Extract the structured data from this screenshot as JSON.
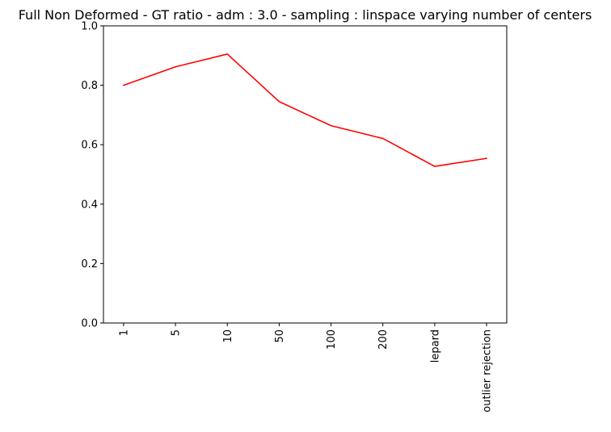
{
  "chart_data": {
    "type": "line",
    "title": "Full Non Deformed - GT ratio - adm : 3.0 - sampling : linspace varying number of centers",
    "xlabel": "",
    "ylabel": "",
    "categories": [
      "1",
      "5",
      "10",
      "50",
      "100",
      "200",
      "lepard",
      "outlier rejection"
    ],
    "series": [
      {
        "values": [
          0.8,
          0.862,
          0.905,
          0.745,
          0.664,
          0.621,
          0.527,
          0.554
        ],
        "color": "#ff0000"
      }
    ],
    "ylim": [
      0.0,
      1.0
    ],
    "yticks": [
      0.0,
      0.2,
      0.4,
      0.6,
      0.8,
      1.0
    ],
    "ytick_labels": [
      "0.0",
      "0.2",
      "0.4",
      "0.6",
      "0.8",
      "1.0"
    ],
    "grid": false,
    "legend": "none"
  }
}
